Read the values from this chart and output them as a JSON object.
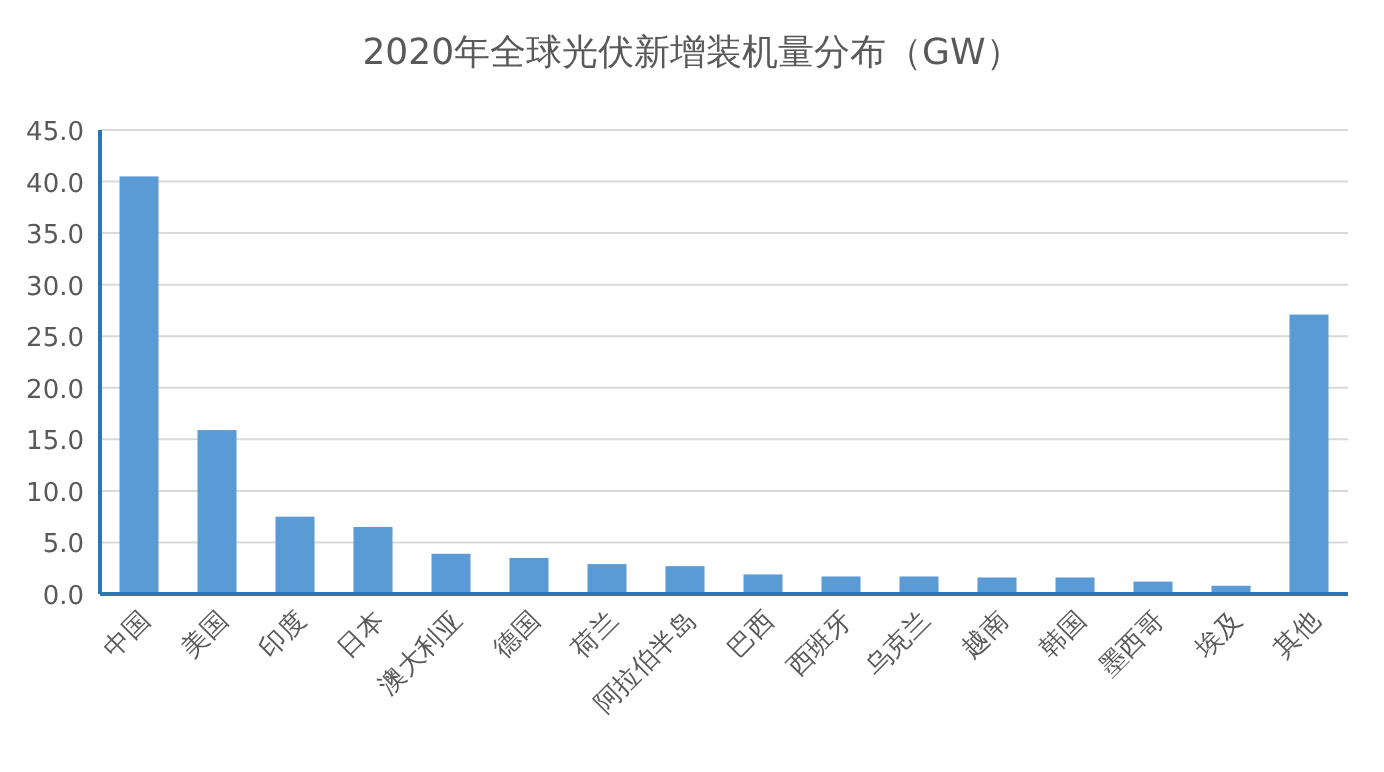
{
  "chart_data": {
    "type": "bar",
    "title": "2020年全球光伏新增装机量分布（GW）",
    "categories": [
      "中国",
      "美国",
      "印度",
      "日本",
      "澳大利亚",
      "德国",
      "荷兰",
      "阿拉伯半岛",
      "巴西",
      "西班牙",
      "乌克兰",
      "越南",
      "韩国",
      "墨西哥",
      "埃及",
      "其他"
    ],
    "values": [
      40.5,
      15.9,
      7.5,
      6.5,
      3.9,
      3.5,
      2.9,
      2.7,
      1.9,
      1.7,
      1.7,
      1.6,
      1.6,
      1.2,
      0.8,
      27.1
    ],
    "color": "#5b9bd5",
    "ylim": [
      0,
      45
    ],
    "yticks": [
      {
        "value": 0,
        "label": "0.0"
      },
      {
        "value": 5,
        "label": "5.0"
      },
      {
        "value": 10,
        "label": "10.0"
      },
      {
        "value": 15,
        "label": "15.0"
      },
      {
        "value": 20,
        "label": "20.0"
      },
      {
        "value": 25,
        "label": "25.0"
      },
      {
        "value": 30,
        "label": "30.0"
      },
      {
        "value": 35,
        "label": "35.0"
      },
      {
        "value": 40,
        "label": "40.0"
      },
      {
        "value": 45,
        "label": "45.0"
      }
    ],
    "grid": "y"
  }
}
